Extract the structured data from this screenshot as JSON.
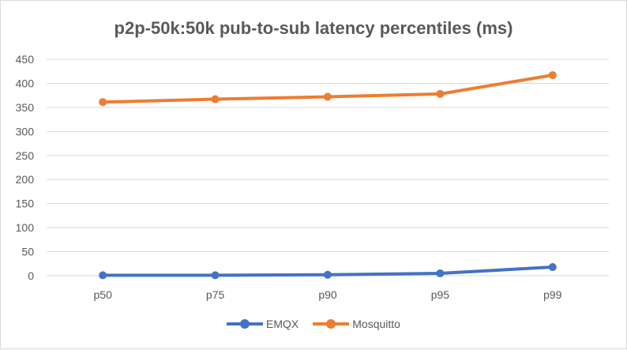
{
  "chart_data": {
    "type": "line",
    "title": "p2p-50k:50k pub-to-sub latency percentiles (ms)",
    "categories": [
      "p50",
      "p75",
      "p90",
      "p95",
      "p99"
    ],
    "series": [
      {
        "name": "EMQX",
        "color": "#4472c4",
        "values": [
          1,
          1,
          2,
          5,
          18
        ]
      },
      {
        "name": "Mosquitto",
        "color": "#ed7d31",
        "values": [
          361,
          367,
          372,
          378,
          417
        ]
      }
    ],
    "ylim": [
      0,
      450
    ],
    "yticks": [
      0,
      50,
      100,
      150,
      200,
      250,
      300,
      350,
      400,
      450
    ],
    "grid": true,
    "legend": "bottom",
    "xlabel": "",
    "ylabel": ""
  }
}
